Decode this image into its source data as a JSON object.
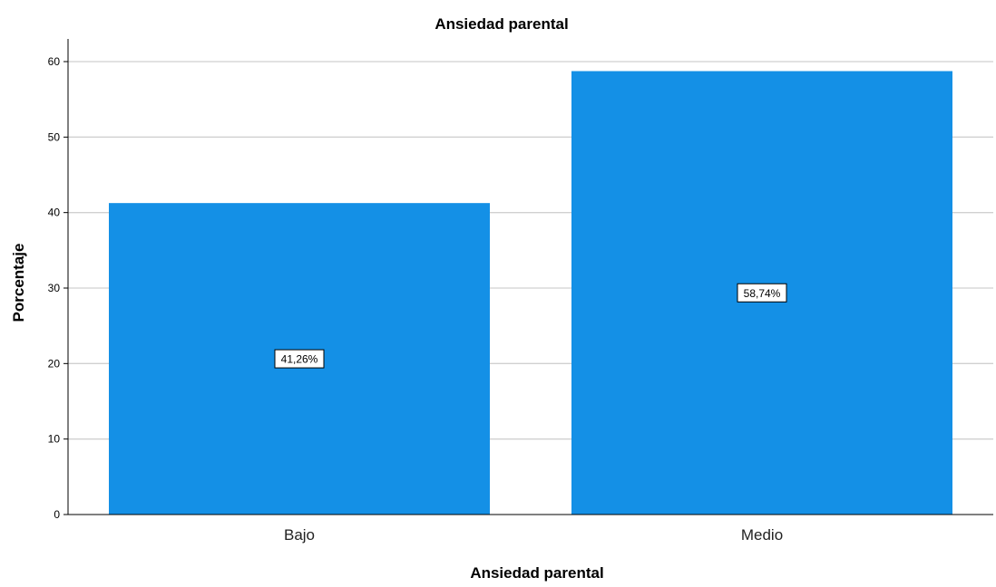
{
  "chart_data": {
    "type": "bar",
    "title": "Ansiedad parental",
    "xlabel": "Ansiedad parental",
    "ylabel": "Porcentaje",
    "categories": [
      "Bajo",
      "Medio"
    ],
    "values": [
      41.26,
      58.74
    ],
    "data_labels": [
      "41,26%",
      "58,74%"
    ],
    "ylim": [
      0,
      63
    ],
    "yticks": [
      0,
      10,
      20,
      30,
      40,
      50,
      60
    ],
    "ytick_labels": [
      "0",
      "10",
      "20",
      "30",
      "40",
      "50",
      "60"
    ],
    "grid": true,
    "legend": "none",
    "colors": {
      "bar": "#1490e6",
      "grid": "#d0d0d0",
      "axis": "#000000"
    }
  }
}
